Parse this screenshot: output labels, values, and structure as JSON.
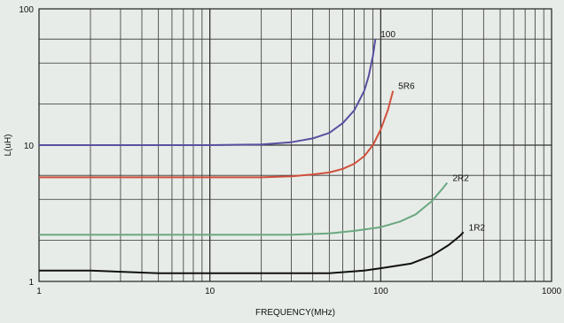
{
  "chart_data": {
    "type": "line",
    "title": "",
    "xlabel": "FREQUENCY(MHz)",
    "ylabel": "L(uH)",
    "xscale": "log",
    "yscale": "log",
    "xlim": [
      1,
      1000
    ],
    "ylim": [
      1,
      100
    ],
    "x_tick_labels": [
      "1",
      "10",
      "100",
      "1000"
    ],
    "y_tick_labels": [
      "1",
      "10",
      "100"
    ],
    "grid": true,
    "background": "#e8ece8",
    "series": [
      {
        "name": "100",
        "color": "#5a4fa0",
        "x": [
          1,
          2,
          5,
          10,
          20,
          30,
          40,
          50,
          60,
          70,
          80,
          85,
          90,
          93
        ],
        "y": [
          10,
          10,
          10,
          10,
          10.1,
          10.5,
          11.2,
          12.3,
          14.5,
          18,
          25,
          32,
          45,
          60
        ]
      },
      {
        "name": "5R6",
        "color": "#d0503c",
        "x": [
          1,
          2,
          5,
          10,
          20,
          30,
          40,
          50,
          60,
          70,
          80,
          90,
          100,
          110,
          118
        ],
        "y": [
          5.8,
          5.8,
          5.8,
          5.8,
          5.8,
          5.9,
          6.1,
          6.3,
          6.7,
          7.3,
          8.3,
          10,
          13,
          18,
          25
        ]
      },
      {
        "name": "2R2",
        "color": "#6aa880",
        "x": [
          1,
          2,
          5,
          10,
          20,
          30,
          50,
          70,
          100,
          130,
          160,
          200,
          230,
          245
        ],
        "y": [
          2.2,
          2.2,
          2.2,
          2.2,
          2.2,
          2.2,
          2.25,
          2.35,
          2.5,
          2.75,
          3.1,
          3.9,
          4.8,
          5.3
        ]
      },
      {
        "name": "1R2",
        "color": "#111111",
        "x": [
          1,
          2,
          5,
          10,
          20,
          50,
          80,
          100,
          150,
          200,
          250,
          290,
          305
        ],
        "y": [
          1.2,
          1.2,
          1.15,
          1.15,
          1.15,
          1.15,
          1.2,
          1.25,
          1.35,
          1.55,
          1.85,
          2.15,
          2.3
        ]
      }
    ]
  }
}
